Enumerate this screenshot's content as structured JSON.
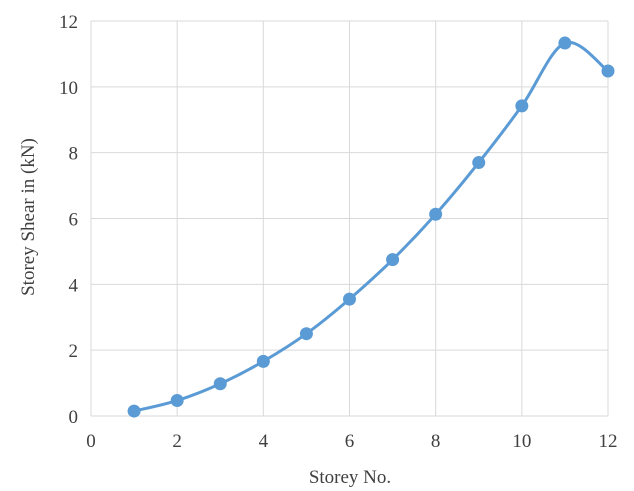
{
  "chart_data": {
    "type": "scatter",
    "title": "",
    "xlabel": "Storey No.",
    "ylabel": "Storey Shear in (kN)",
    "xlim": [
      0,
      12
    ],
    "ylim": [
      0,
      12
    ],
    "xticks": [
      "0",
      "2",
      "4",
      "6",
      "8",
      "10",
      "12"
    ],
    "yticks": [
      "0",
      "2",
      "4",
      "6",
      "8",
      "10",
      "12"
    ],
    "grid": true,
    "smooth_line": true,
    "series": [
      {
        "color": "#5B9BD5",
        "x": [
          1,
          2,
          3,
          4,
          5,
          6,
          7,
          8,
          9,
          10,
          11,
          12
        ],
        "y": [
          0.15,
          0.47,
          0.98,
          1.66,
          2.5,
          3.55,
          4.75,
          6.13,
          7.7,
          9.42,
          11.33,
          10.48
        ]
      }
    ]
  }
}
